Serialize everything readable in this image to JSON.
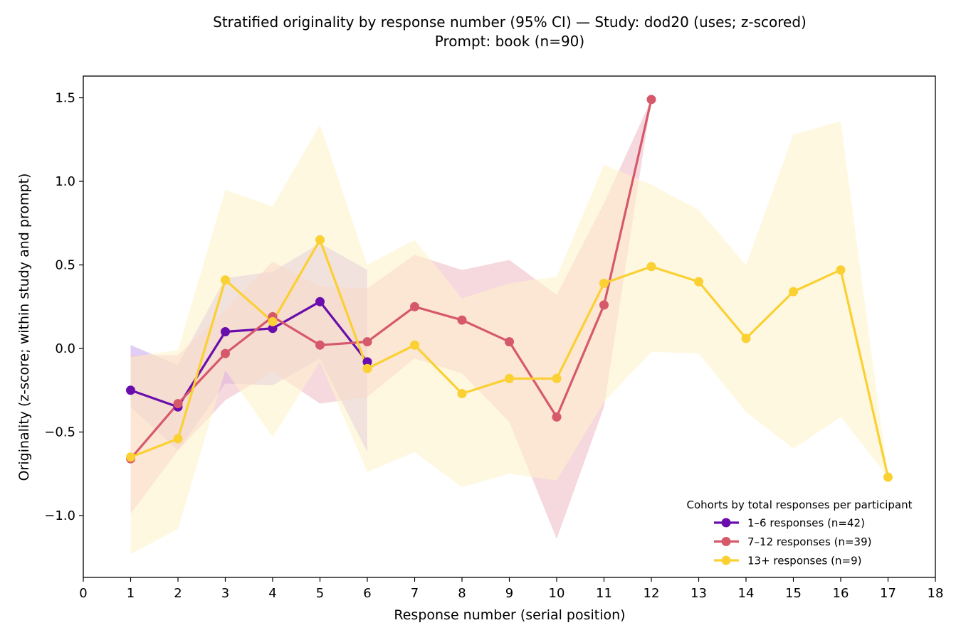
{
  "chart_data": {
    "type": "line",
    "title": "Stratified originality by response number (95% CI) — Study: dod20 (uses; z-scored)",
    "subtitle": "Prompt: book (n=90)",
    "xlabel": "Response number (serial position)",
    "ylabel": "Originality (z-score; within study and prompt)",
    "xlim": [
      0,
      18
    ],
    "ylim": [
      -1.37,
      1.63
    ],
    "x_ticks": [
      0,
      1,
      2,
      3,
      4,
      5,
      6,
      7,
      8,
      9,
      10,
      11,
      12,
      13,
      14,
      15,
      16,
      17,
      18
    ],
    "y_ticks": [
      1.5,
      1.0,
      0.5,
      0.0,
      -0.5,
      -1.0
    ],
    "y_tick_labels": [
      "1.5",
      "1.0",
      "0.5",
      "0.0",
      "−0.5",
      "−1.0"
    ],
    "grid": false,
    "legend": {
      "title": "Cohorts by total responses per participant",
      "placement": "lower-right"
    },
    "series": [
      {
        "name": "1–6 responses (n=42)",
        "color": "#6a0dad",
        "band_color": "#c9a6ef",
        "x": [
          1,
          2,
          3,
          4,
          5,
          6
        ],
        "y": [
          -0.25,
          -0.35,
          0.1,
          0.12,
          0.28,
          -0.08
        ],
        "ci_low": [
          -0.35,
          -0.61,
          -0.21,
          -0.22,
          -0.06,
          -0.62
        ],
        "ci_high": [
          0.02,
          -0.1,
          0.42,
          0.46,
          0.63,
          0.47
        ]
      },
      {
        "name": "7–12 responses (n=39)",
        "color": "#d6596b",
        "band_color": "#eeb9c4",
        "x": [
          1,
          2,
          3,
          4,
          5,
          6,
          7,
          8,
          9,
          10,
          11,
          12
        ],
        "y": [
          -0.66,
          -0.33,
          -0.03,
          0.19,
          0.02,
          0.04,
          0.25,
          0.17,
          0.04,
          -0.41,
          0.26,
          1.49
        ],
        "ci_low": [
          -0.99,
          -0.61,
          -0.31,
          -0.14,
          -0.33,
          -0.29,
          -0.06,
          -0.15,
          -0.44,
          -1.14,
          -0.35,
          1.49
        ],
        "ci_high": [
          -0.04,
          -0.04,
          0.23,
          0.52,
          0.37,
          0.36,
          0.56,
          0.47,
          0.53,
          0.32,
          0.87,
          1.49
        ]
      },
      {
        "name": "13+ responses (n=9)",
        "color": "#fbd032",
        "band_color": "#fff3c8",
        "x": [
          1,
          2,
          3,
          4,
          5,
          6,
          7,
          8,
          9,
          10,
          11,
          12,
          13,
          14,
          15,
          16,
          17
        ],
        "y": [
          -0.65,
          -0.54,
          0.41,
          0.16,
          0.65,
          -0.12,
          0.02,
          -0.27,
          -0.18,
          -0.18,
          0.39,
          0.49,
          0.4,
          0.06,
          0.34,
          0.47,
          -0.77
        ],
        "ci_low": [
          -1.23,
          -1.08,
          -0.13,
          -0.53,
          -0.08,
          -0.74,
          -0.62,
          -0.83,
          -0.75,
          -0.79,
          -0.32,
          -0.02,
          -0.03,
          -0.38,
          -0.6,
          -0.41,
          -0.77
        ],
        "ci_high": [
          -0.05,
          -0.01,
          0.95,
          0.85,
          1.34,
          0.5,
          0.65,
          0.3,
          0.39,
          0.43,
          1.1,
          0.98,
          0.83,
          0.5,
          1.28,
          1.36,
          -0.77
        ]
      }
    ]
  }
}
